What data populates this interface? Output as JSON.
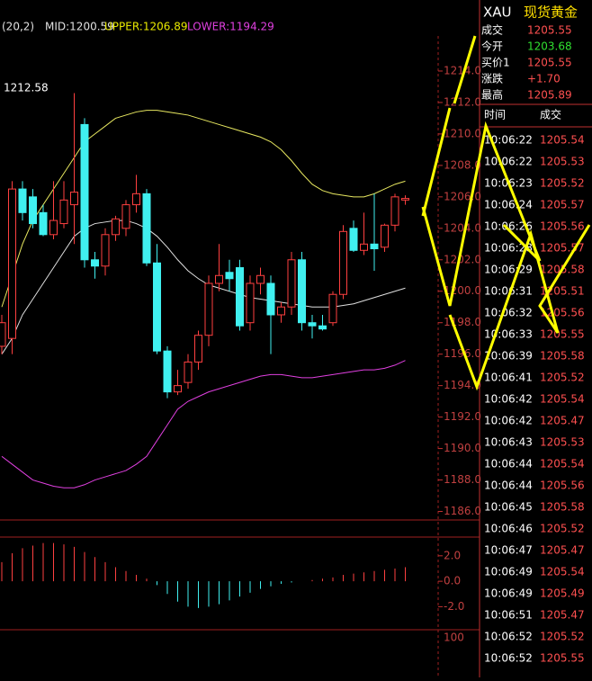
{
  "legend": {
    "params": "(20,2)",
    "mid": "MID:1200.59",
    "upper": "UPPER:1206.89",
    "lower": "LOWER:1194.29"
  },
  "last_high_label": "1212.58",
  "price_axis": {
    "ylim": [
      1185.4,
      1215.6
    ],
    "yticks": [
      {
        "value": 1214,
        "label": "1214.0"
      },
      {
        "value": 1212,
        "label": "1212.0"
      },
      {
        "value": 1210,
        "label": "1210.0"
      },
      {
        "value": 1208,
        "label": "1208.0"
      },
      {
        "value": 1206,
        "label": "1206.0"
      },
      {
        "value": 1204,
        "label": "1204.0"
      },
      {
        "value": 1202,
        "label": "1202.0"
      },
      {
        "value": 1200,
        "label": "1200.0"
      },
      {
        "value": 1198,
        "label": "1198.0"
      },
      {
        "value": 1196,
        "label": "1196.0"
      },
      {
        "value": 1194,
        "label": "1194.0"
      },
      {
        "value": 1192,
        "label": "1192.0"
      },
      {
        "value": 1190,
        "label": "1190.0"
      },
      {
        "value": 1188,
        "label": "1188.0"
      },
      {
        "value": 1186,
        "label": "1186.0"
      }
    ]
  },
  "candles": {
    "open": [
      1196.5,
      1197,
      1206.5,
      1206,
      1205,
      1203.6,
      1204.3,
      1205.5,
      1210.6,
      1202,
      1201.6,
      1203.6,
      1204,
      1205.5,
      1206.2,
      1201.8,
      1196.2,
      1193.6,
      1194.2,
      1195.5,
      1197.2,
      1200.5,
      1201.2,
      1201.5,
      1198,
      1200.5,
      1200.5,
      1198.5,
      1199,
      1202,
      1198,
      1197.8,
      1198,
      1199.8,
      1204,
      1202.6,
      1203,
      1202.8,
      1204.2,
      1205.8
    ],
    "high": [
      1198.5,
      1207,
      1207,
      1206.5,
      1205.5,
      1207,
      1207,
      1212.6,
      1211,
      1202.5,
      1204,
      1204.8,
      1205.8,
      1207.4,
      1206.5,
      1203,
      1196.5,
      1195,
      1196,
      1197.5,
      1201,
      1203,
      1202,
      1202,
      1201,
      1201.5,
      1201,
      1199.3,
      1202.5,
      1202.5,
      1198.5,
      1198.5,
      1200,
      1204.2,
      1204.5,
      1205,
      1206.2,
      1204.3,
      1206.2,
      1206.1
    ],
    "low": [
      1196,
      1196,
      1204.5,
      1204,
      1203.5,
      1203.3,
      1204,
      1203,
      1201.5,
      1200.8,
      1201,
      1203.2,
      1203.5,
      1205,
      1201.6,
      1196,
      1193.2,
      1193.4,
      1193.8,
      1195,
      1196.5,
      1200,
      1200,
      1197.5,
      1197.5,
      1199.8,
      1196,
      1198,
      1198.5,
      1197.5,
      1197,
      1197.5,
      1197.8,
      1199.5,
      1202.5,
      1202.3,
      1201.3,
      1202.5,
      1203.8,
      1205.5
    ],
    "close": [
      1198,
      1206.5,
      1205,
      1204.3,
      1203.6,
      1204.5,
      1205.8,
      1206.3,
      1202,
      1201.6,
      1203.6,
      1204.6,
      1205.5,
      1206.2,
      1201.8,
      1196.2,
      1193.6,
      1194,
      1195.5,
      1197.2,
      1200.5,
      1201,
      1200.8,
      1197.8,
      1200.5,
      1201,
      1198.5,
      1199,
      1202,
      1198,
      1197.8,
      1197.6,
      1199.8,
      1203.8,
      1202.6,
      1203,
      1202.7,
      1204.2,
      1206,
      1205.9
    ]
  },
  "bands": [
    {
      "name": "upper",
      "color": "#e8e860",
      "values": [
        1199,
        1201,
        1203,
        1204.5,
        1205.5,
        1206.5,
        1207.5,
        1208.5,
        1209.5,
        1210,
        1210.5,
        1211,
        1211.2,
        1211.4,
        1211.5,
        1211.5,
        1211.4,
        1211.3,
        1211.2,
        1211,
        1210.8,
        1210.6,
        1210.4,
        1210.2,
        1210,
        1209.8,
        1209.5,
        1209,
        1208.3,
        1207.5,
        1206.8,
        1206.4,
        1206.2,
        1206.1,
        1206,
        1206,
        1206.2,
        1206.5,
        1206.8,
        1207
      ]
    },
    {
      "name": "mid",
      "color": "#e0e0e0",
      "values": [
        1196,
        1197,
        1198.5,
        1199.5,
        1200.5,
        1201.5,
        1202.5,
        1203.5,
        1204,
        1204.3,
        1204.4,
        1204.5,
        1204.5,
        1204.3,
        1204,
        1203.5,
        1202.8,
        1202,
        1201.3,
        1200.8,
        1200.4,
        1200.2,
        1200,
        1199.8,
        1199.6,
        1199.5,
        1199.4,
        1199.3,
        1199.2,
        1199.1,
        1199,
        1199,
        1199,
        1199.1,
        1199.2,
        1199.4,
        1199.6,
        1199.8,
        1200,
        1200.2
      ]
    },
    {
      "name": "lower",
      "color": "#e040e0",
      "values": [
        1189.5,
        1189,
        1188.5,
        1188,
        1187.8,
        1187.6,
        1187.5,
        1187.5,
        1187.7,
        1188,
        1188.2,
        1188.4,
        1188.6,
        1189,
        1189.5,
        1190.5,
        1191.5,
        1192.5,
        1193,
        1193.3,
        1193.6,
        1193.8,
        1194,
        1194.2,
        1194.4,
        1194.6,
        1194.7,
        1194.7,
        1194.6,
        1194.5,
        1194.5,
        1194.6,
        1194.7,
        1194.8,
        1194.9,
        1195,
        1195,
        1195.1,
        1195.3,
        1195.6
      ]
    }
  ],
  "macd": {
    "ylim": [
      -3.1,
      3.4
    ],
    "yticks": [
      {
        "value": 2,
        "label": "2.0"
      },
      {
        "value": 0,
        "label": "0.0"
      },
      {
        "value": -2,
        "label": "-2.0"
      }
    ],
    "values": [
      1.5,
      2.2,
      2.6,
      2.8,
      3,
      3,
      2.9,
      2.7,
      2.3,
      1.9,
      1.5,
      1.1,
      0.8,
      0.5,
      0.2,
      -0.3,
      -1,
      -1.6,
      -2,
      -2.1,
      -2,
      -1.8,
      -1.5,
      -1.2,
      -0.9,
      -0.6,
      -0.4,
      -0.2,
      -0.1,
      0,
      0.1,
      0.2,
      0.3,
      0.5,
      0.6,
      0.7,
      0.8,
      0.9,
      1,
      1.1
    ]
  },
  "osc": {
    "ytick": 100
  },
  "quote": {
    "symbol": "XAU",
    "name": "现货黄金",
    "rows": [
      [
        "成交",
        "1205.55"
      ],
      [
        "今开",
        "1203.68"
      ],
      [
        "买价1",
        "1205.55"
      ],
      [
        "涨跌",
        "+1.70"
      ],
      [
        "最高",
        "1205.89"
      ]
    ]
  },
  "trades": {
    "header": [
      "时间",
      "成交"
    ],
    "rows": [
      [
        "10:06:22",
        "1205.54"
      ],
      [
        "10:06:22",
        "1205.53"
      ],
      [
        "10:06:23",
        "1205.52"
      ],
      [
        "10:06:24",
        "1205.57"
      ],
      [
        "10:06:26",
        "1205.56"
      ],
      [
        "10:06:28",
        "1205.57"
      ],
      [
        "10:06:29",
        "1205.58"
      ],
      [
        "10:06:31",
        "1205.51"
      ],
      [
        "10:06:32",
        "1205.56"
      ],
      [
        "10:06:33",
        "1205.55"
      ],
      [
        "10:06:39",
        "1205.58"
      ],
      [
        "10:06:41",
        "1205.52"
      ],
      [
        "10:06:42",
        "1205.54"
      ],
      [
        "10:06:42",
        "1205.47"
      ],
      [
        "10:06:43",
        "1205.53"
      ],
      [
        "10:06:44",
        "1205.54"
      ],
      [
        "10:06:44",
        "1205.56"
      ],
      [
        "10:06:45",
        "1205.58"
      ],
      [
        "10:06:46",
        "1205.52"
      ],
      [
        "10:06:47",
        "1205.47"
      ],
      [
        "10:06:49",
        "1205.54"
      ],
      [
        "10:06:49",
        "1205.49"
      ],
      [
        "10:06:51",
        "1205.47"
      ],
      [
        "10:06:52",
        "1205.52"
      ],
      [
        "10:06:52",
        "1205.55"
      ]
    ]
  }
}
